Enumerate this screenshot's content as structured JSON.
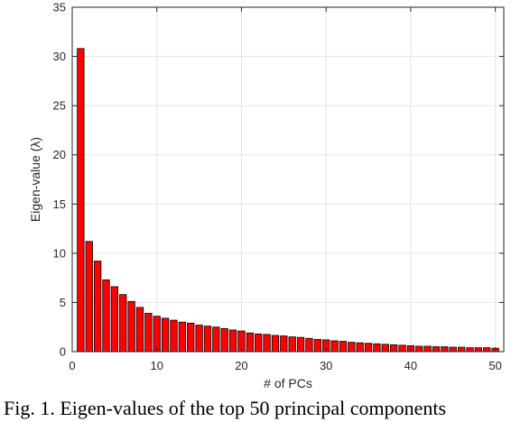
{
  "chart_data": {
    "type": "bar",
    "title": "",
    "xlabel": "# of PCs",
    "ylabel": "Eigen-value (λ)",
    "xlim": [
      0,
      51
    ],
    "ylim": [
      0,
      35
    ],
    "xticks": [
      0,
      10,
      20,
      30,
      40,
      50
    ],
    "yticks": [
      0,
      5,
      10,
      15,
      20,
      25,
      30,
      35
    ],
    "grid": true,
    "bar_color": "#ff0000",
    "bar_edge_color": "#000000",
    "x": [
      1,
      2,
      3,
      4,
      5,
      6,
      7,
      8,
      9,
      10,
      11,
      12,
      13,
      14,
      15,
      16,
      17,
      18,
      19,
      20,
      21,
      22,
      23,
      24,
      25,
      26,
      27,
      28,
      29,
      30,
      31,
      32,
      33,
      34,
      35,
      36,
      37,
      38,
      39,
      40,
      41,
      42,
      43,
      44,
      45,
      46,
      47,
      48,
      49,
      50
    ],
    "values": [
      30.8,
      11.2,
      9.2,
      7.3,
      6.6,
      5.8,
      5.1,
      4.5,
      3.9,
      3.6,
      3.4,
      3.2,
      3.0,
      2.9,
      2.7,
      2.6,
      2.5,
      2.35,
      2.2,
      2.1,
      1.9,
      1.8,
      1.75,
      1.65,
      1.6,
      1.5,
      1.45,
      1.35,
      1.25,
      1.2,
      1.1,
      1.05,
      0.95,
      0.9,
      0.85,
      0.8,
      0.75,
      0.7,
      0.65,
      0.6,
      0.55,
      0.55,
      0.5,
      0.5,
      0.45,
      0.45,
      0.4,
      0.4,
      0.4,
      0.35
    ]
  },
  "caption": "Fig. 1. Eigen-values of the top 50 principal components"
}
